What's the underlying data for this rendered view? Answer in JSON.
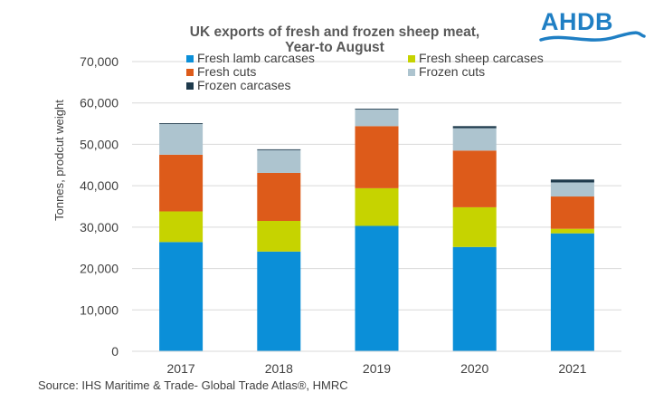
{
  "chart_data": {
    "type": "bar",
    "stacked": true,
    "title": [
      "UK exports of fresh and frozen sheep meat,",
      "Year-to August"
    ],
    "ylabel": "Tonnes, prodcut weight",
    "xlabel": "",
    "categories": [
      "2017",
      "2018",
      "2019",
      "2020",
      "2021"
    ],
    "ylim": [
      0,
      70000
    ],
    "yticks": [
      0,
      10000,
      20000,
      30000,
      40000,
      50000,
      60000,
      70000
    ],
    "ytick_labels": [
      "0",
      "10,000",
      "20,000",
      "30,000",
      "40,000",
      "50,000",
      "60,000",
      "70,000"
    ],
    "grid": true,
    "legend_placement": "top",
    "series": [
      {
        "name": "Fresh lamb carcases",
        "color": "#0b8fd8",
        "values": [
          26400,
          24100,
          30300,
          25200,
          28500
        ]
      },
      {
        "name": "Fresh sheep carcases",
        "color": "#c6d300",
        "values": [
          7400,
          7400,
          9100,
          9600,
          1100
        ]
      },
      {
        "name": "Fresh cuts",
        "color": "#dd5b1a",
        "values": [
          13700,
          11600,
          15000,
          13700,
          7800
        ]
      },
      {
        "name": "Frozen cuts",
        "color": "#adc4cf",
        "values": [
          7400,
          5500,
          4000,
          5400,
          3400
        ]
      },
      {
        "name": "Frozen carcases",
        "color": "#1e3a4c",
        "values": [
          200,
          200,
          200,
          500,
          700
        ]
      }
    ]
  },
  "logo": {
    "text": "AHDB"
  },
  "source": "Source: IHS Maritime & Trade- Global Trade Atlas®, HMRC"
}
